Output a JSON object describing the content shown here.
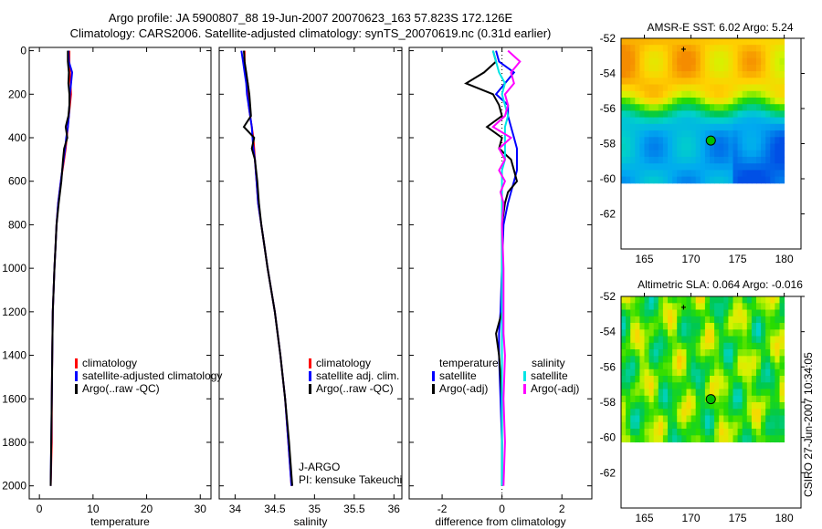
{
  "title_line1": "Argo profile: JA 5900807_88 19-Jun-2007 20070623_163 57.823S 172.126E",
  "title_line2": "Climatology: CARS2006. Satellite-adjusted climatology: synTS_20070619.nc (0.31d earlier)",
  "credit": "CSIRO 27-Jun-2007 10:34:05",
  "colors": {
    "climatology": "#ff0000",
    "satellite": "#0000ff",
    "argo": "#000000",
    "sal_satellite": "#00e5e5",
    "sal_argo": "#ff00ff"
  },
  "chart_data": [
    {
      "type": "line",
      "xlabel": "temperature",
      "ylabel": "",
      "xlim": [
        -1.9,
        32
      ],
      "ylim": [
        2060,
        -15
      ],
      "xticks": [
        "0",
        "10",
        "20",
        "30"
      ],
      "xtick_values": [
        0,
        10,
        20,
        30
      ],
      "yticks": [
        "0",
        "200",
        "400",
        "600",
        "800",
        "1000",
        "1200",
        "1400",
        "1600",
        "1800",
        "2000"
      ],
      "ytick_values": [
        0,
        200,
        400,
        600,
        800,
        1000,
        1200,
        1400,
        1600,
        1800,
        2000
      ],
      "legend": [
        "climatology",
        "satellite-adjusted climatology",
        "Argo(..raw -QC)"
      ],
      "depth": [
        0,
        50,
        100,
        150,
        200,
        250,
        300,
        350,
        400,
        450,
        500,
        600,
        700,
        800,
        900,
        1000,
        1200,
        1400,
        1600,
        1800,
        2000
      ],
      "series": [
        {
          "name": "climatology",
          "color": "#ff0000",
          "values": [
            5.6,
            5.6,
            5.7,
            5.8,
            5.9,
            5.7,
            5.5,
            5.3,
            5.1,
            4.9,
            4.6,
            4.0,
            3.5,
            3.2,
            3.0,
            2.8,
            2.5,
            2.4,
            2.3,
            2.3,
            2.1
          ]
        },
        {
          "name": "satellite-adjusted climatology",
          "color": "#0000ff",
          "values": [
            5.4,
            5.5,
            6.1,
            5.9,
            5.7,
            5.6,
            5.5,
            5.3,
            5.0,
            4.8,
            4.5,
            4.0,
            3.5,
            3.2,
            3.0,
            2.8,
            2.5,
            2.4,
            2.3,
            2.2,
            2.1
          ]
        },
        {
          "name": "Argo(..raw -QC)",
          "color": "#000000",
          "values": [
            5.3,
            5.3,
            5.5,
            5.4,
            5.6,
            5.6,
            5.4,
            4.9,
            5.2,
            4.6,
            4.4,
            4.1,
            3.6,
            3.2,
            3.0,
            2.8,
            2.5,
            2.4,
            2.3,
            2.2,
            2.1
          ]
        }
      ]
    },
    {
      "type": "line",
      "xlabel": "salinity",
      "xlim": [
        33.8,
        36.1
      ],
      "ylim": [
        2060,
        -15
      ],
      "xticks": [
        "34",
        "34.5",
        "35",
        "35.5",
        "36"
      ],
      "xtick_values": [
        34,
        34.5,
        35,
        35.5,
        36
      ],
      "legend": [
        "climatology",
        "satellite adj. clim.",
        "Argo(..raw -QC)"
      ],
      "annotation": [
        "J-ARGO",
        "PI: kensuke Takeuchi"
      ],
      "depth": [
        0,
        50,
        100,
        150,
        200,
        250,
        300,
        350,
        400,
        450,
        500,
        600,
        700,
        800,
        900,
        1000,
        1200,
        1400,
        1600,
        1800,
        2000
      ],
      "series": [
        {
          "name": "climatology",
          "color": "#ff0000",
          "values": [
            34.12,
            34.12,
            34.13,
            34.16,
            34.17,
            34.17,
            34.19,
            34.21,
            34.23,
            34.24,
            34.25,
            34.27,
            34.29,
            34.33,
            34.37,
            34.41,
            34.5,
            34.57,
            34.63,
            34.67,
            34.71
          ]
        },
        {
          "name": "satellite adj. clim.",
          "color": "#0000ff",
          "values": [
            34.08,
            34.1,
            34.12,
            34.14,
            34.15,
            34.17,
            34.19,
            34.21,
            34.22,
            34.23,
            34.25,
            34.27,
            34.29,
            34.33,
            34.37,
            34.41,
            34.5,
            34.57,
            34.63,
            34.67,
            34.71
          ]
        },
        {
          "name": "Argo(..raw -QC)",
          "color": "#000000",
          "values": [
            34.11,
            34.12,
            34.14,
            34.16,
            34.18,
            34.19,
            34.2,
            34.11,
            34.24,
            34.21,
            34.25,
            34.28,
            34.3,
            34.33,
            34.37,
            34.41,
            34.5,
            34.57,
            34.63,
            34.68,
            34.72
          ]
        }
      ]
    },
    {
      "type": "line",
      "xlabel": "difference from climatology",
      "xlim": [
        -3.1,
        3.0
      ],
      "ylim": [
        2060,
        -15
      ],
      "xticks": [
        "-2",
        "0",
        "2"
      ],
      "xtick_values": [
        -2,
        0,
        2
      ],
      "legend_headers": [
        "temperature",
        "salinity"
      ],
      "legend": [
        "satellite",
        "Argo(-adj)",
        "satellite",
        "Argo(-adj)"
      ],
      "depth": [
        0,
        50,
        100,
        150,
        200,
        250,
        300,
        350,
        400,
        450,
        500,
        550,
        600,
        650,
        700,
        800,
        1000,
        1200,
        1300,
        1400,
        1600,
        1800,
        2000
      ],
      "series": [
        {
          "name": "temperature satellite",
          "color": "#0000ff",
          "values": [
            -0.2,
            -0.1,
            0.4,
            0.1,
            -0.2,
            0.2,
            0.2,
            0.3,
            0.4,
            0.5,
            0.5,
            0.5,
            0.4,
            0.3,
            0.2,
            0.05,
            0.0,
            -0.05,
            -0.1,
            -0.1,
            -0.05,
            0.0,
            0.0
          ]
        },
        {
          "name": "temperature Argo(-adj)",
          "color": "#000000",
          "values": [
            -0.3,
            -0.2,
            -0.6,
            -1.2,
            -0.3,
            -0.1,
            0.0,
            -0.5,
            0.0,
            -0.1,
            0.3,
            0.4,
            0.5,
            0.2,
            0.1,
            0.0,
            0.0,
            0.0,
            -0.2,
            -0.1,
            0.0,
            0.0,
            0.0
          ]
        },
        {
          "name": "salinity satellite",
          "color": "#00e5e5",
          "values": [
            -0.3,
            -0.2,
            -0.1,
            0.1,
            0.0,
            0.1,
            0.2,
            0.1,
            0.1,
            0.1,
            0.1,
            0.0,
            0.0,
            0.0,
            0.0,
            0.0,
            0.0,
            0.0,
            0.0,
            0.0,
            0.0,
            0.0,
            0.0
          ]
        },
        {
          "name": "salinity Argo(-adj)",
          "color": "#ff00ff",
          "values": [
            0.2,
            0.6,
            0.3,
            0.4,
            0.1,
            0.2,
            0.1,
            -0.3,
            0.3,
            -0.1,
            0.1,
            -0.1,
            0.1,
            -0.05,
            0.05,
            0.0,
            0.05,
            0.05,
            0.05,
            0.1,
            0.05,
            0.1,
            0.05
          ]
        }
      ]
    },
    {
      "type": "heatmap",
      "title": "AMSR-E SST: 6.02 Argo: 5.24",
      "xlim": [
        162.5,
        181.8
      ],
      "ylim": [
        -64,
        -52
      ],
      "xticks": [
        "165",
        "170",
        "175",
        "180"
      ],
      "xtick_values": [
        165,
        170,
        175,
        180
      ],
      "yticks": [
        "-52",
        "-54",
        "-56",
        "-58",
        "-60",
        "-62"
      ],
      "ytick_values": [
        -52,
        -54,
        -56,
        -58,
        -60,
        -62
      ],
      "data_extent": {
        "lon": [
          162.5,
          180
        ],
        "lat": [
          -60.1,
          -52
        ]
      },
      "profile_location": {
        "lon": 172.126,
        "lat": -57.823
      },
      "marker": {
        "lon": 169.2,
        "lat": -52.6
      }
    },
    {
      "type": "heatmap",
      "title": "Altimetric SLA: 0.064 Argo: -0.016",
      "xlim": [
        162.5,
        181.8
      ],
      "ylim": [
        -64,
        -52
      ],
      "xticks": [
        "165",
        "170",
        "175",
        "180"
      ],
      "xtick_values": [
        165,
        170,
        175,
        180
      ],
      "yticks": [
        "-52",
        "-54",
        "-56",
        "-58",
        "-60",
        "-62"
      ],
      "ytick_values": [
        -52,
        -54,
        -56,
        -58,
        -60,
        -62
      ],
      "data_extent": {
        "lon": [
          162.5,
          180
        ],
        "lat": [
          -60.1,
          -52
        ]
      },
      "profile_location": {
        "lon": 172.126,
        "lat": -57.823
      },
      "marker": {
        "lon": 169.2,
        "lat": -52.6
      }
    }
  ]
}
